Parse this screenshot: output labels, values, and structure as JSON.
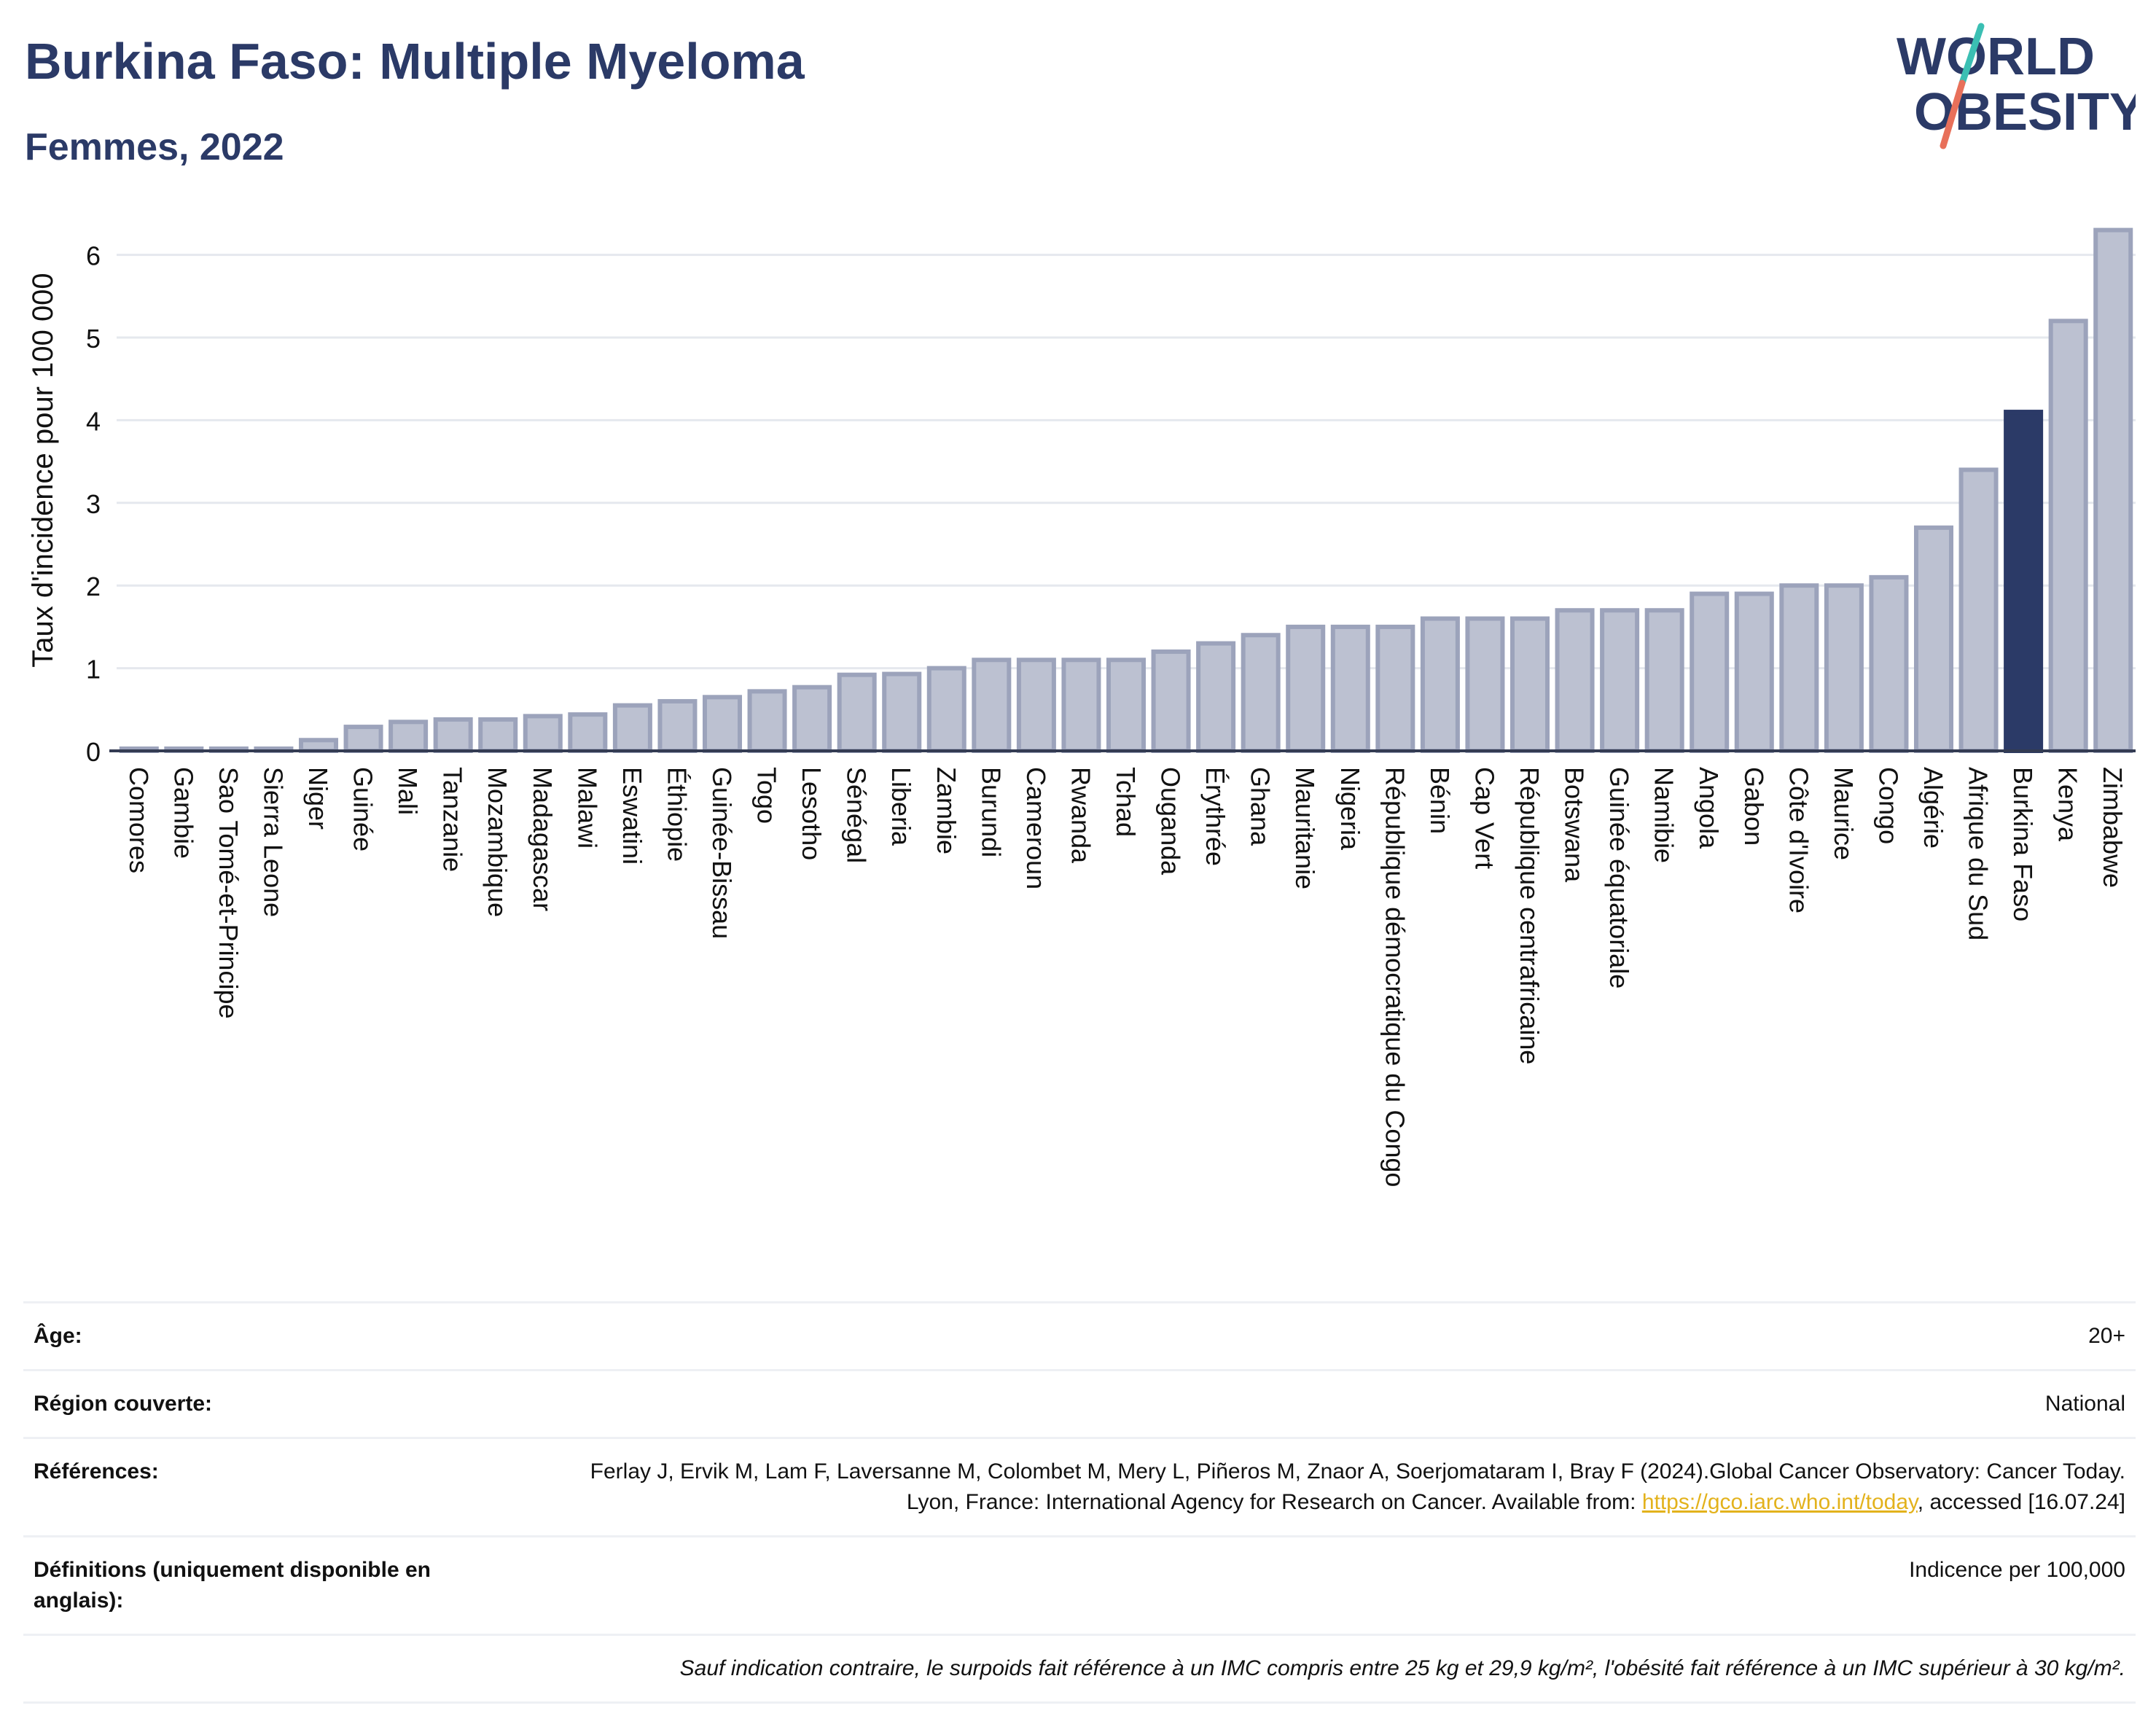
{
  "header": {
    "title": "Burkina Faso: Multiple Myeloma",
    "subtitle": "Femmes, 2022"
  },
  "logo": {
    "line1": "WORLD",
    "line2": "OBESITY",
    "slash_colors": [
      "#3bbfb3",
      "#e8705a"
    ]
  },
  "colors": {
    "bar": "#bcc1d1",
    "bar_border": "#9ca3bb",
    "highlight": "#2b3a67",
    "axis": "#333b52",
    "grid": "#e5e8ee"
  },
  "chart_data": {
    "type": "bar",
    "title": "Burkina Faso: Multiple Myeloma",
    "subtitle": "Femmes, 2022",
    "ylabel": "Taux d'incidence pour 100 000",
    "xlabel": "",
    "ylim": [
      0,
      6.5
    ],
    "yticks": [
      0,
      1,
      2,
      3,
      4,
      5,
      6
    ],
    "grid": true,
    "highlight": "Burkina Faso",
    "categories": [
      "Comores",
      "Gambie",
      "Sao Tomé-et-Principe",
      "Sierra Leone",
      "Niger",
      "Guinée",
      "Mali",
      "Tanzanie",
      "Mozambique",
      "Madagascar",
      "Malawi",
      "Eswatini",
      "Éthiopie",
      "Guinée-Bissau",
      "Togo",
      "Lesotho",
      "Sénégal",
      "Liberia",
      "Zambie",
      "Burundi",
      "Cameroun",
      "Rwanda",
      "Tchad",
      "Ouganda",
      "Érythrée",
      "Ghana",
      "Mauritanie",
      "Nigeria",
      "République démocratique du Congo",
      "Bénin",
      "Cap Vert",
      "République centrafricaine",
      "Botswana",
      "Guinée équatoriale",
      "Namibie",
      "Angola",
      "Gabon",
      "Côte d'Ivoire",
      "Maurice",
      "Congo",
      "Algérie",
      "Afrique du Sud",
      "Burkina Faso",
      "Kenya",
      "Zimbabwe"
    ],
    "values": [
      0.02,
      0.02,
      0.02,
      0.02,
      0.13,
      0.29,
      0.35,
      0.38,
      0.38,
      0.42,
      0.44,
      0.55,
      0.6,
      0.65,
      0.72,
      0.77,
      0.92,
      0.93,
      1.0,
      1.1,
      1.1,
      1.1,
      1.1,
      1.2,
      1.3,
      1.4,
      1.5,
      1.5,
      1.5,
      1.6,
      1.6,
      1.6,
      1.7,
      1.7,
      1.7,
      1.9,
      1.9,
      2.0,
      2.0,
      2.1,
      2.7,
      3.4,
      4.1,
      5.2,
      6.3
    ]
  },
  "info": {
    "age_label": "Âge:",
    "age_value": "20+",
    "region_label": "Région couverte:",
    "region_value": "National",
    "references_label": "Références:",
    "references_text": "Ferlay J, Ervik M, Lam F, Laversanne M, Colombet M, Mery L, Piñeros M, Znaor A, Soerjomataram I, Bray F (2024).Global Cancer Observatory: Cancer Today. Lyon, France: International Agency for Research on Cancer. Available from:",
    "references_link": "https://gco.iarc.who.int/today",
    "references_suffix": ", accessed [16.07.24]",
    "definitions_label": "Définitions (uniquement disponible en anglais):",
    "definitions_value": "Indicence per 100,000",
    "note": "Sauf indication contraire, le surpoids fait référence à un IMC compris entre 25 kg et 29,9 kg/m², l'obésité fait référence à un IMC supérieur à 30 kg/m²."
  }
}
